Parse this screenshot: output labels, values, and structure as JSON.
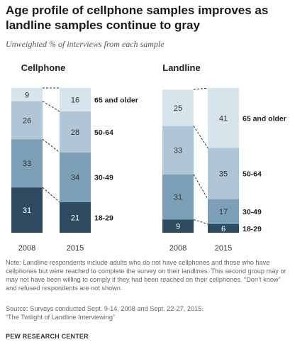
{
  "title": "Age profile of cellphone samples improves as landline samples continue to gray",
  "subtitle": "Unweighted % of interviews from each sample",
  "note": "Note: Landline respondents include adults who do not have cellphones and those who have cellphones but were reached to complete the survey on their landlines. This second group may or may not have been willing to comply if they had been reached on their cellphones. “Don’t know” and refused respondents are not shown.",
  "source_line1": "Source: Surveys conducted Sept. 9-14, 2008 and Sept. 22-27, 2015.",
  "source_line2": "“The Twilight of Landline Interviewing”",
  "brand": "PEW RESEARCH CENTER",
  "colors": {
    "18-29": "#2d4a5e",
    "30-49": "#7c9fb8",
    "50-64": "#b0c6d6",
    "65 and older": "#d8e4ec"
  },
  "chart_data": [
    {
      "type": "bar",
      "stacked": true,
      "title": "Cellphone",
      "categories": [
        "2008",
        "2015"
      ],
      "series": [
        {
          "name": "18-29",
          "values": [
            31,
            21
          ]
        },
        {
          "name": "30-49",
          "values": [
            33,
            34
          ]
        },
        {
          "name": "50-64",
          "values": [
            26,
            28
          ]
        },
        {
          "name": "65 and older",
          "values": [
            9,
            16
          ]
        }
      ]
    },
    {
      "type": "bar",
      "stacked": true,
      "title": "Landline",
      "categories": [
        "2008",
        "2015"
      ],
      "series": [
        {
          "name": "18-29",
          "values": [
            9,
            6
          ]
        },
        {
          "name": "30-49",
          "values": [
            31,
            17
          ]
        },
        {
          "name": "50-64",
          "values": [
            33,
            35
          ]
        },
        {
          "name": "65 and older",
          "values": [
            25,
            41
          ]
        }
      ]
    }
  ]
}
